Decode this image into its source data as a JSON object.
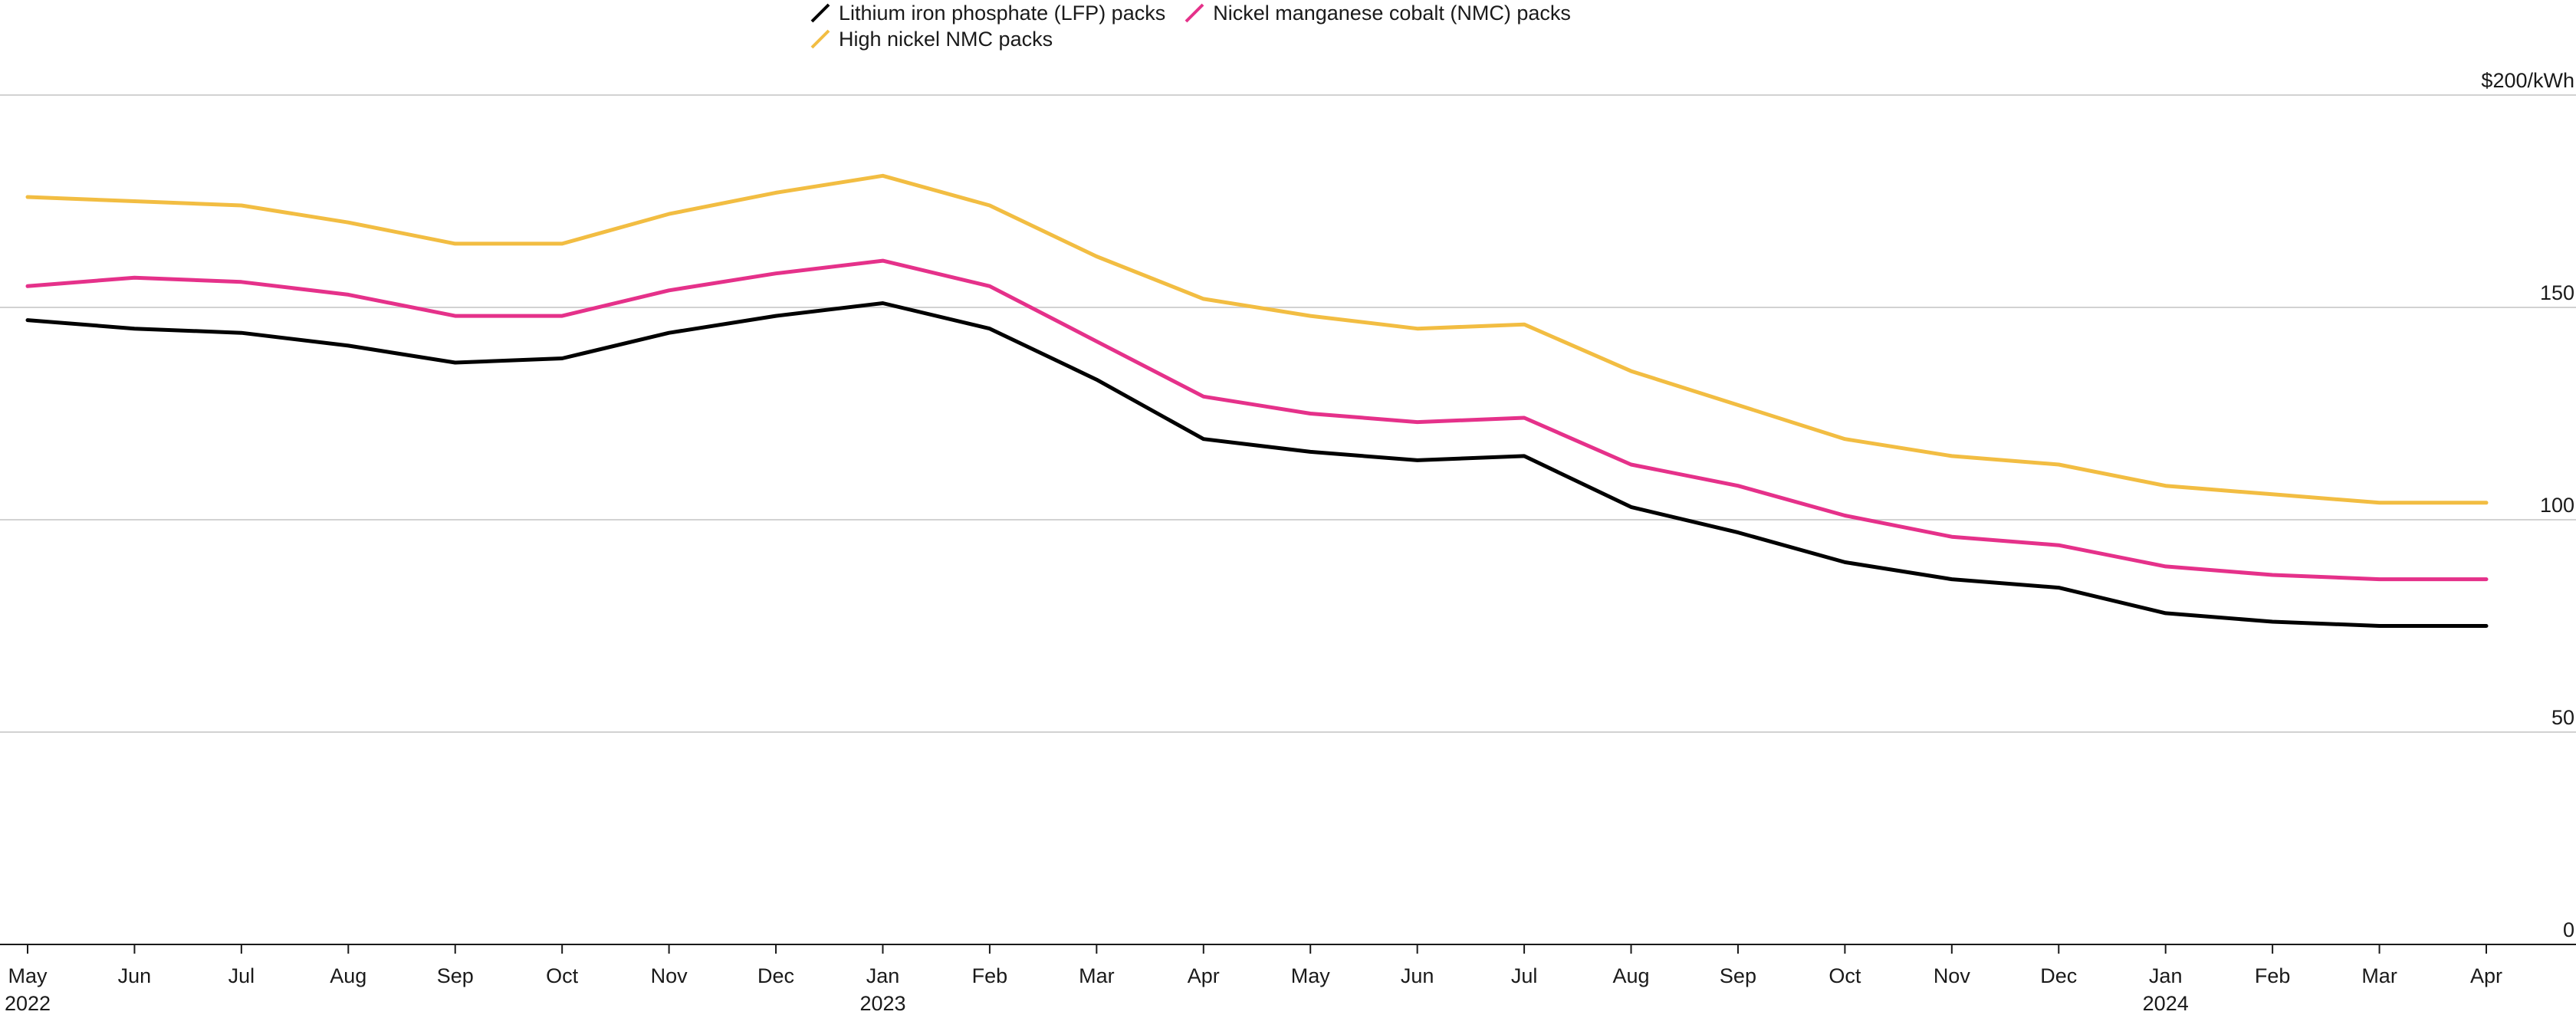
{
  "legend": [
    {
      "label": "Lithium iron phosphate (LFP) packs",
      "color": "#000000"
    },
    {
      "label": "Nickel manganese cobalt (NMC) packs",
      "color": "#e5318a"
    },
    {
      "label": "High nickel NMC packs",
      "color": "#f2bd42"
    }
  ],
  "chart_data": {
    "type": "line",
    "title": "",
    "xlabel": "",
    "ylabel": "",
    "unit_label": "$200/kWh",
    "ylim": [
      0,
      200
    ],
    "y_ticks": [
      {
        "value": 200,
        "label": "$200/kWh"
      },
      {
        "value": 150,
        "label": "150"
      },
      {
        "value": 100,
        "label": "100"
      },
      {
        "value": 50,
        "label": "50"
      },
      {
        "value": 0,
        "label": "0"
      }
    ],
    "grid": true,
    "legend_position": "top",
    "x": [
      "May",
      "Jun",
      "Jul",
      "Aug",
      "Sep",
      "Oct",
      "Nov",
      "Dec",
      "Jan",
      "Feb",
      "Mar",
      "Apr",
      "May",
      "Jun",
      "Jul",
      "Aug",
      "Sep",
      "Oct",
      "Nov",
      "Dec",
      "Jan",
      "Feb",
      "Mar",
      "Apr"
    ],
    "x_year_labels": {
      "0": "2022",
      "8": "2023",
      "20": "2024"
    },
    "series": [
      {
        "name": "Lithium iron phosphate (LFP) packs",
        "color": "#000000",
        "values": [
          147,
          145,
          144,
          141,
          137,
          138,
          144,
          148,
          151,
          145,
          133,
          119,
          116,
          114,
          115,
          103,
          97,
          90,
          86,
          84,
          78,
          76,
          75,
          75
        ]
      },
      {
        "name": "Nickel manganese cobalt (NMC) packs",
        "color": "#e5318a",
        "values": [
          155,
          157,
          156,
          153,
          148,
          148,
          154,
          158,
          161,
          155,
          142,
          129,
          125,
          123,
          124,
          113,
          108,
          101,
          96,
          94,
          89,
          87,
          86,
          86
        ]
      },
      {
        "name": "High nickel NMC packs",
        "color": "#f2bd42",
        "values": [
          176,
          175,
          174,
          170,
          165,
          165,
          172,
          177,
          181,
          174,
          162,
          152,
          148,
          145,
          146,
          135,
          127,
          119,
          115,
          113,
          108,
          106,
          104,
          104
        ]
      }
    ]
  }
}
